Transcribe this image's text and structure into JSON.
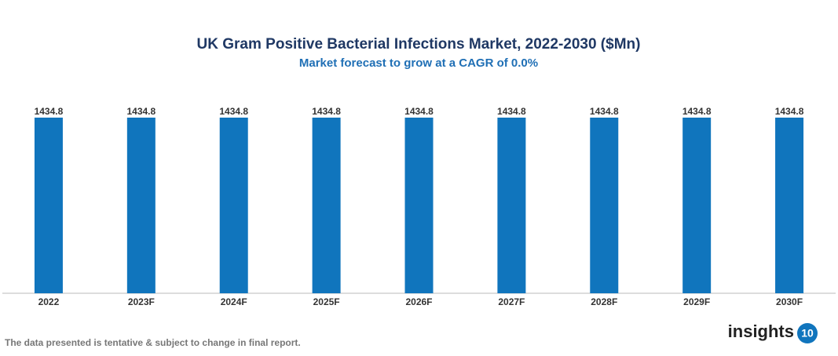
{
  "chart_data": {
    "type": "bar",
    "title": "UK Gram Positive Bacterial Infections Market, 2022-2030 ($Mn)",
    "subtitle": "Market forecast to grow at a CAGR of 0.0%",
    "categories": [
      "2022",
      "2023F",
      "2024F",
      "2025F",
      "2026F",
      "2027F",
      "2028F",
      "2029F",
      "2030F"
    ],
    "values": [
      1434.8,
      1434.8,
      1434.8,
      1434.8,
      1434.8,
      1434.8,
      1434.8,
      1434.8,
      1434.8
    ],
    "color": "#1075bd"
  },
  "footer": {
    "note": "The data presented is tentative & subject to change in final report.",
    "brand": "insights",
    "brand_number": "10"
  }
}
